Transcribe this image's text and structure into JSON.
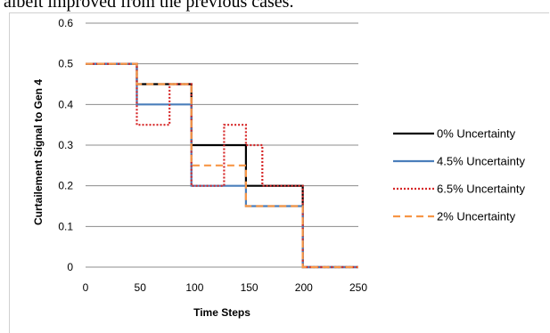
{
  "page": {
    "caption": "albeit improved from the previous cases."
  },
  "chart_data": {
    "type": "line",
    "xlabel": "Time Steps",
    "ylabel": "Curtailement Signal to Gen 4",
    "xlim": [
      0,
      250
    ],
    "ylim": [
      0,
      0.6
    ],
    "x_ticks": [
      0,
      50,
      100,
      150,
      200,
      250
    ],
    "y_ticks": [
      0,
      0.1,
      0.2,
      0.3,
      0.4,
      0.5,
      0.6
    ],
    "x_tick_labels": [
      "0",
      "50",
      "100",
      "150",
      "200",
      "250"
    ],
    "y_tick_labels": [
      "0",
      "0.1",
      "0.2",
      "0.3",
      "0.4",
      "0.5",
      "0.6"
    ],
    "grid": "horizontal",
    "legend_position": "right",
    "series": [
      {
        "name": "0% Uncertainty",
        "color": "#000000",
        "style": "solid",
        "points": [
          [
            0,
            0.5
          ],
          [
            47,
            0.5
          ],
          [
            47,
            0.45
          ],
          [
            97,
            0.45
          ],
          [
            97,
            0.3
          ],
          [
            147,
            0.3
          ],
          [
            147,
            0.2
          ],
          [
            199,
            0.2
          ],
          [
            199,
            0
          ],
          [
            250,
            0
          ]
        ]
      },
      {
        "name": "4.5% Uncertainty",
        "color": "#4a7ebb",
        "style": "solid",
        "points": [
          [
            0,
            0.5
          ],
          [
            47,
            0.5
          ],
          [
            47,
            0.4
          ],
          [
            97,
            0.4
          ],
          [
            97,
            0.2
          ],
          [
            147,
            0.2
          ],
          [
            147,
            0.15
          ],
          [
            199,
            0.15
          ],
          [
            199,
            0
          ],
          [
            250,
            0
          ]
        ]
      },
      {
        "name": "6.5% Uncertainty",
        "color": "#d62728",
        "style": "dotted",
        "points": [
          [
            0,
            0.5
          ],
          [
            47,
            0.5
          ],
          [
            47,
            0.35
          ],
          [
            57,
            0.35
          ],
          [
            57,
            0.35
          ],
          [
            77,
            0.35
          ],
          [
            77,
            0.45
          ],
          [
            97,
            0.45
          ],
          [
            97,
            0.2
          ],
          [
            127,
            0.2
          ],
          [
            127,
            0.35
          ],
          [
            147,
            0.35
          ],
          [
            147,
            0.3
          ],
          [
            162,
            0.3
          ],
          [
            162,
            0.2
          ],
          [
            199,
            0.2
          ],
          [
            199,
            0
          ],
          [
            250,
            0
          ]
        ]
      },
      {
        "name": "2% Uncertainty",
        "color": "#f79646",
        "style": "dashed",
        "points": [
          [
            0,
            0.5
          ],
          [
            47,
            0.5
          ],
          [
            47,
            0.45
          ],
          [
            97,
            0.45
          ],
          [
            97,
            0.25
          ],
          [
            147,
            0.25
          ],
          [
            147,
            0.15
          ],
          [
            199,
            0.15
          ],
          [
            199,
            0
          ],
          [
            250,
            0
          ]
        ]
      }
    ]
  }
}
